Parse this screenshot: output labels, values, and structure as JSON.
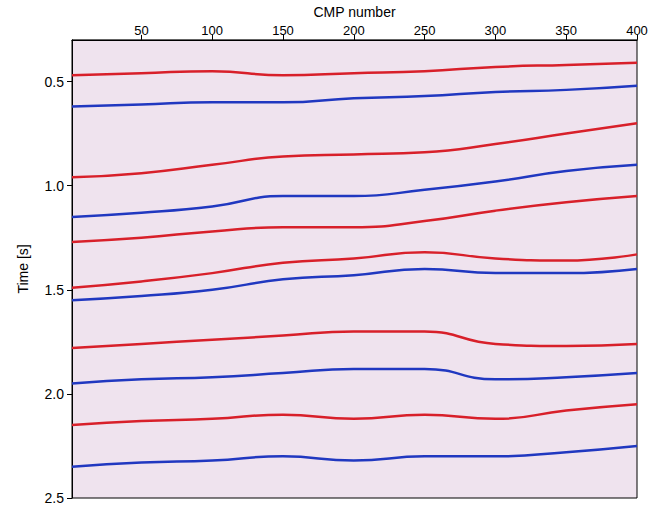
{
  "chart_data": {
    "type": "line",
    "x_label": "CMP number",
    "y_label": "Time [s]",
    "xlim": [
      1,
      400
    ],
    "xticks": [
      50,
      100,
      150,
      200,
      250,
      300,
      350,
      400
    ],
    "ylim": [
      0.3,
      2.5
    ],
    "yticks": [
      0.5,
      {
        "value": 1,
        "label": "1.0"
      },
      1.5,
      {
        "value": 2,
        "label": "2.0"
      },
      2.5
    ],
    "y_inverted": true,
    "grid": false,
    "marker": "none",
    "x": [
      1,
      50,
      100,
      150,
      200,
      250,
      300,
      350,
      400
    ],
    "series": [
      {
        "color": "#d8202a",
        "values": [
          0.47,
          0.46,
          0.45,
          0.47,
          0.46,
          0.45,
          0.43,
          0.42,
          0.41
        ]
      },
      {
        "color": "#2038c0",
        "values": [
          0.62,
          0.61,
          0.6,
          0.6,
          0.58,
          0.57,
          0.55,
          0.54,
          0.52
        ]
      },
      {
        "color": "#d8202a",
        "values": [
          0.96,
          0.94,
          0.9,
          0.86,
          0.85,
          0.84,
          0.8,
          0.75,
          0.7
        ]
      },
      {
        "color": "#2038c0",
        "values": [
          1.15,
          1.13,
          1.1,
          1.05,
          1.05,
          1.02,
          0.98,
          0.93,
          0.9
        ]
      },
      {
        "color": "#d8202a",
        "values": [
          1.27,
          1.25,
          1.22,
          1.2,
          1.2,
          1.17,
          1.12,
          1.08,
          1.05
        ]
      },
      {
        "color": "#d8202a",
        "values": [
          1.49,
          1.46,
          1.42,
          1.37,
          1.35,
          1.32,
          1.35,
          1.36,
          1.33
        ]
      },
      {
        "color": "#2038c0",
        "values": [
          1.55,
          1.53,
          1.5,
          1.45,
          1.43,
          1.4,
          1.42,
          1.42,
          1.4
        ]
      },
      {
        "color": "#d8202a",
        "values": [
          1.78,
          1.76,
          1.74,
          1.72,
          1.7,
          1.7,
          1.76,
          1.77,
          1.76
        ]
      },
      {
        "color": "#2038c0",
        "values": [
          1.95,
          1.93,
          1.92,
          1.9,
          1.88,
          1.88,
          1.93,
          1.92,
          1.9
        ]
      },
      {
        "color": "#d8202a",
        "values": [
          2.15,
          2.13,
          2.12,
          2.1,
          2.12,
          2.1,
          2.12,
          2.08,
          2.05
        ]
      },
      {
        "color": "#2038c0",
        "values": [
          2.35,
          2.33,
          2.32,
          2.3,
          2.32,
          2.3,
          2.3,
          2.28,
          2.25
        ]
      }
    ]
  }
}
